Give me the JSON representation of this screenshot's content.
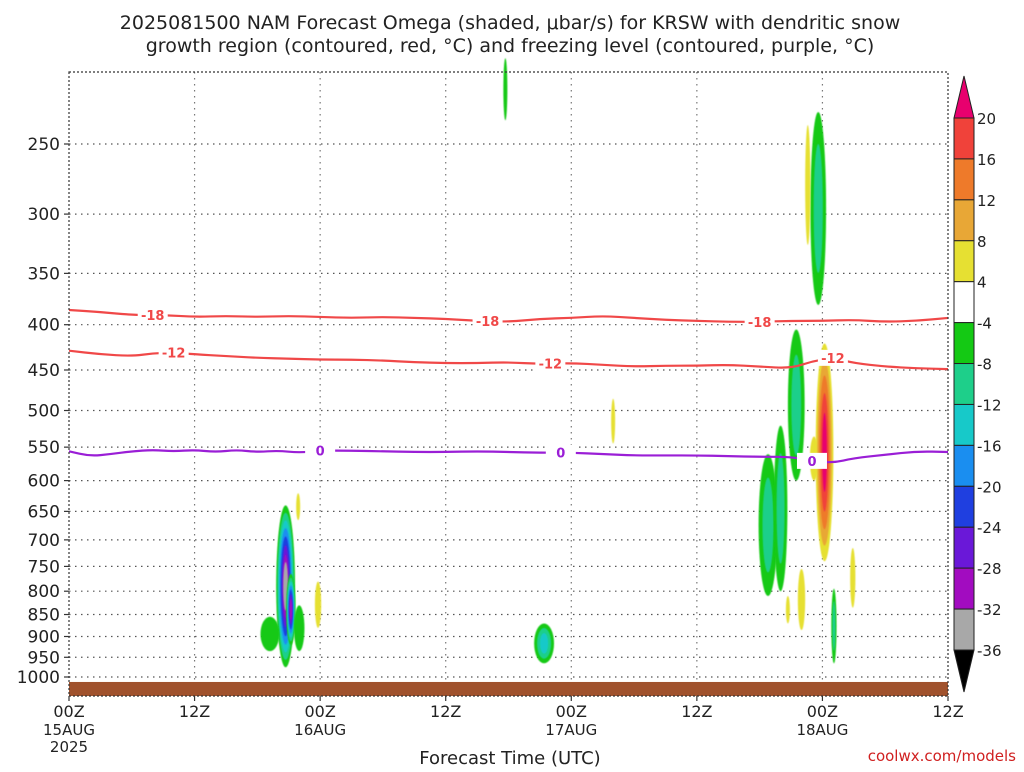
{
  "chart_data": {
    "type": "heatmap",
    "title_line1": "2025081500 NAM Forecast Omega (shaded, μbar/s) for KRSW with dendritic snow",
    "title_line2": "growth region (contoured, red, °C) and freezing level (contoured, purple, °C)",
    "xlabel": "Forecast Time (UTC)",
    "credit": "coolwx.com/models",
    "xlim": [
      0,
      84
    ],
    "ylim": [
      1030,
      200
    ],
    "y_log_scale": true,
    "grid": true,
    "x_ticks": [
      {
        "hour": 0,
        "label": "00Z",
        "date": "15AUG",
        "year": "2025"
      },
      {
        "hour": 12,
        "label": "12Z"
      },
      {
        "hour": 24,
        "label": "00Z",
        "date": "16AUG"
      },
      {
        "hour": 36,
        "label": "12Z"
      },
      {
        "hour": 48,
        "label": "00Z",
        "date": "17AUG"
      },
      {
        "hour": 60,
        "label": "12Z"
      },
      {
        "hour": 72,
        "label": "00Z",
        "date": "18AUG"
      },
      {
        "hour": 84,
        "label": "12Z"
      }
    ],
    "y_ticks": [
      {
        "p": 250,
        "label": "250"
      },
      {
        "p": 300,
        "label": "300"
      },
      {
        "p": 350,
        "label": "350"
      },
      {
        "p": 400,
        "label": "400"
      },
      {
        "p": 450,
        "label": "450"
      },
      {
        "p": 500,
        "label": "500"
      },
      {
        "p": 550,
        "label": "550"
      },
      {
        "p": 600,
        "label": "600"
      },
      {
        "p": 650,
        "label": "650"
      },
      {
        "p": 700,
        "label": "700"
      },
      {
        "p": 750,
        "label": "750"
      },
      {
        "p": 800,
        "label": "800"
      },
      {
        "p": 850,
        "label": "850"
      },
      {
        "p": 900,
        "label": "900"
      },
      {
        "p": 950,
        "label": "950"
      },
      {
        "p": 1000,
        "label": "1000"
      }
    ],
    "surface_pressure": 1013,
    "surface_color": "#a0522d",
    "colorbar": {
      "levels": [
        {
          "from": 20,
          "to": null,
          "color": "#e8006e"
        },
        {
          "from": 16,
          "to": 20,
          "color": "#f0423a"
        },
        {
          "from": 12,
          "to": 16,
          "color": "#ee7a2a"
        },
        {
          "from": 8,
          "to": 12,
          "color": "#e8a736"
        },
        {
          "from": 4,
          "to": 8,
          "color": "#e6e032"
        },
        {
          "from": -4,
          "to": 4,
          "color": "#ffffff"
        },
        {
          "from": -8,
          "to": -4,
          "color": "#14c914"
        },
        {
          "from": -12,
          "to": -8,
          "color": "#1ecf8a"
        },
        {
          "from": -16,
          "to": -12,
          "color": "#17c9c9"
        },
        {
          "from": -20,
          "to": -16,
          "color": "#1a8ef0"
        },
        {
          "from": -24,
          "to": -20,
          "color": "#1f3fe0"
        },
        {
          "from": -28,
          "to": -24,
          "color": "#6a18d8"
        },
        {
          "from": -32,
          "to": -28,
          "color": "#a20cc0"
        },
        {
          "from": -36,
          "to": -32,
          "color": "#a8a8a8"
        },
        {
          "from": null,
          "to": -36,
          "color": "#000000"
        }
      ],
      "tick_labels": [
        "20",
        "16",
        "12",
        "8",
        "4",
        "-4",
        "-8",
        "-12",
        "-16",
        "-20",
        "-24",
        "-28",
        "-32",
        "-36"
      ]
    },
    "contours": [
      {
        "name": "-18 °C",
        "color": "#f04848",
        "label": "-18",
        "label_hours": [
          8,
          40,
          66
        ],
        "points": [
          [
            0,
            385
          ],
          [
            3,
            387
          ],
          [
            6,
            390
          ],
          [
            9,
            390
          ],
          [
            12,
            392
          ],
          [
            15,
            391
          ],
          [
            18,
            392
          ],
          [
            21,
            391
          ],
          [
            24,
            392
          ],
          [
            27,
            393
          ],
          [
            30,
            392
          ],
          [
            33,
            393
          ],
          [
            36,
            394
          ],
          [
            39,
            396
          ],
          [
            42,
            397
          ],
          [
            45,
            394
          ],
          [
            48,
            393
          ],
          [
            51,
            391
          ],
          [
            54,
            393
          ],
          [
            57,
            395
          ],
          [
            60,
            396
          ],
          [
            63,
            397
          ],
          [
            66,
            397
          ],
          [
            69,
            396
          ],
          [
            72,
            396
          ],
          [
            75,
            395
          ],
          [
            78,
            397
          ],
          [
            81,
            396
          ],
          [
            84,
            393
          ]
        ]
      },
      {
        "name": "-12 °C",
        "color": "#f04848",
        "label": "-12",
        "label_hours": [
          10,
          46,
          73
        ],
        "points": [
          [
            0,
            428
          ],
          [
            3,
            432
          ],
          [
            6,
            434
          ],
          [
            8,
            431
          ],
          [
            10,
            430
          ],
          [
            12,
            432
          ],
          [
            15,
            434
          ],
          [
            18,
            436
          ],
          [
            21,
            437
          ],
          [
            24,
            438
          ],
          [
            27,
            438
          ],
          [
            30,
            439
          ],
          [
            33,
            441
          ],
          [
            36,
            442
          ],
          [
            39,
            442
          ],
          [
            42,
            441
          ],
          [
            45,
            443
          ],
          [
            48,
            442
          ],
          [
            51,
            444
          ],
          [
            54,
            446
          ],
          [
            57,
            445
          ],
          [
            60,
            445
          ],
          [
            63,
            444
          ],
          [
            66,
            446
          ],
          [
            69,
            448
          ],
          [
            71,
            440
          ],
          [
            73,
            436
          ],
          [
            75,
            442
          ],
          [
            78,
            446
          ],
          [
            81,
            448
          ],
          [
            84,
            449
          ]
        ]
      },
      {
        "name": "0 °C",
        "color": "#9a1ed6",
        "label": "0",
        "label_hours": [
          24,
          47,
          71
        ],
        "points": [
          [
            0,
            556
          ],
          [
            2,
            563
          ],
          [
            4,
            560
          ],
          [
            6,
            556
          ],
          [
            8,
            554
          ],
          [
            10,
            556
          ],
          [
            12,
            554
          ],
          [
            14,
            557
          ],
          [
            16,
            554
          ],
          [
            18,
            557
          ],
          [
            20,
            555
          ],
          [
            22,
            558
          ],
          [
            24,
            555
          ],
          [
            27,
            555
          ],
          [
            30,
            556
          ],
          [
            33,
            557
          ],
          [
            36,
            557
          ],
          [
            39,
            556
          ],
          [
            42,
            557
          ],
          [
            45,
            558
          ],
          [
            48,
            558
          ],
          [
            51,
            560
          ],
          [
            54,
            562
          ],
          [
            57,
            562
          ],
          [
            60,
            562
          ],
          [
            63,
            563
          ],
          [
            66,
            564
          ],
          [
            69,
            564
          ],
          [
            71,
            570
          ],
          [
            73,
            573
          ],
          [
            75,
            566
          ],
          [
            78,
            561
          ],
          [
            81,
            556
          ],
          [
            84,
            557
          ]
        ]
      }
    ],
    "omega_blobs": [
      {
        "hour": 20.7,
        "p_top": 640,
        "p_bot": 975,
        "w": 1.8,
        "value": -34
      },
      {
        "hour": 21.2,
        "p_top": 765,
        "p_bot": 920,
        "w": 0.9,
        "value": -30
      },
      {
        "hour": 19.2,
        "p_top": 855,
        "p_bot": 935,
        "w": 1.8,
        "value": -8
      },
      {
        "hour": 22.0,
        "p_top": 830,
        "p_bot": 935,
        "w": 1.0,
        "value": -8
      },
      {
        "hour": 21.9,
        "p_top": 620,
        "p_bot": 665,
        "w": 0.15,
        "value": 4
      },
      {
        "hour": 23.8,
        "p_top": 780,
        "p_bot": 880,
        "w": 0.6,
        "value": 4
      },
      {
        "hour": 41.7,
        "p_top": 200,
        "p_bot": 235,
        "w": 0.3,
        "value": -8
      },
      {
        "hour": 45.4,
        "p_top": 870,
        "p_bot": 965,
        "w": 1.9,
        "value": -14
      },
      {
        "hour": 52.0,
        "p_top": 485,
        "p_bot": 545,
        "w": 0.2,
        "value": 5
      },
      {
        "hour": 66.8,
        "p_top": 560,
        "p_bot": 810,
        "w": 1.8,
        "value": -9
      },
      {
        "hour": 68.0,
        "p_top": 520,
        "p_bot": 800,
        "w": 1.3,
        "value": -10
      },
      {
        "hour": 69.5,
        "p_top": 405,
        "p_bot": 600,
        "w": 1.6,
        "value": -12
      },
      {
        "hour": 71.6,
        "p_top": 230,
        "p_bot": 380,
        "w": 1.5,
        "value": -12
      },
      {
        "hour": 70.6,
        "p_top": 238,
        "p_bot": 325,
        "w": 0.5,
        "value": 5
      },
      {
        "hour": 71.2,
        "p_top": 535,
        "p_bot": 600,
        "w": 0.8,
        "value": 5
      },
      {
        "hour": 72.2,
        "p_top": 420,
        "p_bot": 740,
        "w": 1.7,
        "value": 22
      },
      {
        "hour": 70.0,
        "p_top": 755,
        "p_bot": 885,
        "w": 0.7,
        "value": 5
      },
      {
        "hour": 68.7,
        "p_top": 810,
        "p_bot": 870,
        "w": 0.2,
        "value": 5
      },
      {
        "hour": 73.1,
        "p_top": 795,
        "p_bot": 965,
        "w": 0.5,
        "value": -11
      },
      {
        "hour": 74.9,
        "p_top": 715,
        "p_bot": 835,
        "w": 0.5,
        "value": 5
      }
    ]
  }
}
